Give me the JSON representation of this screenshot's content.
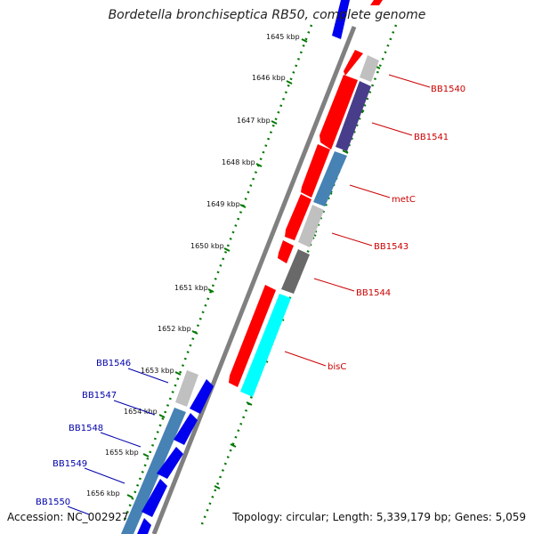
{
  "title": "Bordetella bronchiseptica RB50, complete genome",
  "accession_text": "Accession: NC_002927",
  "summary_text": "Topology: circular; Length: 5,339,179 bp; Genes: 5,059",
  "colors": {
    "forward_red": "#ff0000",
    "reverse_blue": "#0000ee",
    "backbone": "#808080",
    "tick_green": "#007700",
    "label_red": "#cc0000",
    "label_blue": "#0000aa",
    "steel_blue": "#4682b4",
    "dark_slate": "#483d8b",
    "light_gray": "#c0c0c0",
    "dim_gray": "#696969",
    "cyan": "#00ffff"
  },
  "tick_labels": [
    "1645 kbp",
    "1646 kbp",
    "1647 kbp",
    "1648 kbp",
    "1649 kbp",
    "1650 kbp",
    "1651 kbp",
    "1652 kbp",
    "1653 kbp",
    "1654 kbp",
    "1655 kbp",
    "1656 kbp"
  ],
  "right_gene_labels": [
    "BB1540",
    "BB1541",
    "metC",
    "BB1543",
    "BB1544",
    "bisC"
  ],
  "left_gene_labels": [
    "BB1546",
    "BB1547",
    "BB1548",
    "BB1549",
    "BB1550"
  ]
}
